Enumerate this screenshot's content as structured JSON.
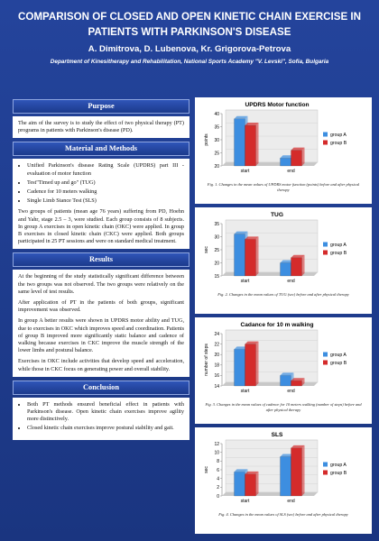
{
  "header": {
    "title": "COMPARISON OF CLOSED AND OPEN KINETIC CHAIN EXERCISE IN PATIENTS WITH PARKINSON'S DISEASE",
    "authors": "A. Dimitrova, D. Lubenova, Kr. Grigorova-Petrova",
    "affiliation": "Department of Kinesitherapy and Rehabilitation, National Sports Academy \"V. Levski\", Sofia, Bulgaria"
  },
  "sections": [
    {
      "heading": "Purpose",
      "paragraphs": [
        "The aim of the survey is to study the effect of two physical therapy (PT) programs in patients with Parkinson's disease (PD)."
      ]
    },
    {
      "heading": "Material and Methods",
      "bullets": [
        "Unified Parkinson's disease Rating Scale (UPDRS) part III - evaluation of motor function",
        "Test\"Timed up and go\" (TUG)",
        "Cadence for 10 meters walking",
        "Single Limb Stance Test (SLS)"
      ],
      "paragraphs": [
        "Two groups of patients (mean age 76 years) suffering from PD, Hoehn and Yahr, stage 2.5 – 3, were studied. Each group consists of 8 subjects. In group A exercises in open kinetic chain (OKC) were applied. In group B exercises in closed kinetic chain (CKC) were applied. Both groups participated in 25 PT sessions and were on standard medical treatment."
      ]
    },
    {
      "heading": "Results",
      "paragraphs": [
        "At the beginning of the study statistically significant difference between the two groups was not observed. The two groups were relatively on the same level of test results.",
        "After application of PT in the patients of both groups, significant improvement was observed.",
        "In group A better results were shown in UPDRS motor ability and TUG, due to exercises in OKC which improves speed and coordination. Patients of group B improved more significantly static balance and cadence of walking because exercises in CKC improve the muscle strength of the lower limbs and postural balance.",
        "Exercises in OKC include activities that develop speed and acceleration, while those in CKC focus on generating power and overall stability."
      ]
    },
    {
      "heading": "Conclusion",
      "bullets": [
        "Both PT methods ensured beneficial effect in patients with Parkinson's disease. Open kinetic chain exercises improve agility more distinctively.",
        "Closed kinetic chain exercises improve postural stability and gait."
      ]
    }
  ],
  "chart_data": [
    {
      "type": "bar",
      "title": "UPDRS Motor function",
      "ylabel": "points",
      "categories": [
        "start",
        "end"
      ],
      "series": [
        {
          "name": "group A",
          "color": "#3d8ee0",
          "values": [
            38,
            23
          ]
        },
        {
          "name": "group B",
          "color": "#d42b2b",
          "values": [
            35.5,
            26
          ]
        }
      ],
      "ylim": [
        20,
        40
      ],
      "yticks": [
        20,
        25,
        30,
        35,
        40
      ],
      "caption": "Fig. 1. Changes in the mean values of UPDRS motor function (points) before and after physical therapy"
    },
    {
      "type": "bar",
      "title": "TUG",
      "ylabel": "sec",
      "categories": [
        "start",
        "end"
      ],
      "series": [
        {
          "name": "group A",
          "color": "#3d8ee0",
          "values": [
            31,
            20
          ]
        },
        {
          "name": "group B",
          "color": "#d42b2b",
          "values": [
            29,
            22
          ]
        }
      ],
      "ylim": [
        15,
        35
      ],
      "yticks": [
        15,
        20,
        25,
        30,
        35
      ],
      "caption": "Fig. 2. Changes in the mean values of TUG (sec) before and after physical therapy"
    },
    {
      "type": "bar",
      "title": "Cadance for 10 m walking",
      "ylabel": "number of steps",
      "categories": [
        "start",
        "end"
      ],
      "series": [
        {
          "name": "group A",
          "color": "#3d8ee0",
          "values": [
            21,
            16
          ]
        },
        {
          "name": "group B",
          "color": "#d42b2b",
          "values": [
            22,
            15
          ]
        }
      ],
      "ylim": [
        14,
        24
      ],
      "yticks": [
        14,
        16,
        18,
        20,
        22,
        24
      ],
      "caption": "Fig. 3. Changes in the mean values of cadence for 10 meters walking (number of steps) before and after physical therapy"
    },
    {
      "type": "bar",
      "title": "SLS",
      "ylabel": "sec",
      "categories": [
        "start",
        "end"
      ],
      "series": [
        {
          "name": "group A",
          "color": "#3d8ee0",
          "values": [
            5.5,
            9
          ]
        },
        {
          "name": "group B",
          "color": "#d42b2b",
          "values": [
            5,
            11
          ]
        }
      ],
      "ylim": [
        0,
        12
      ],
      "yticks": [
        0,
        2,
        4,
        6,
        8,
        10,
        12
      ],
      "caption": "Fig. 4. Changes in the mean values of SLS (sec) before and after physical therapy"
    }
  ]
}
